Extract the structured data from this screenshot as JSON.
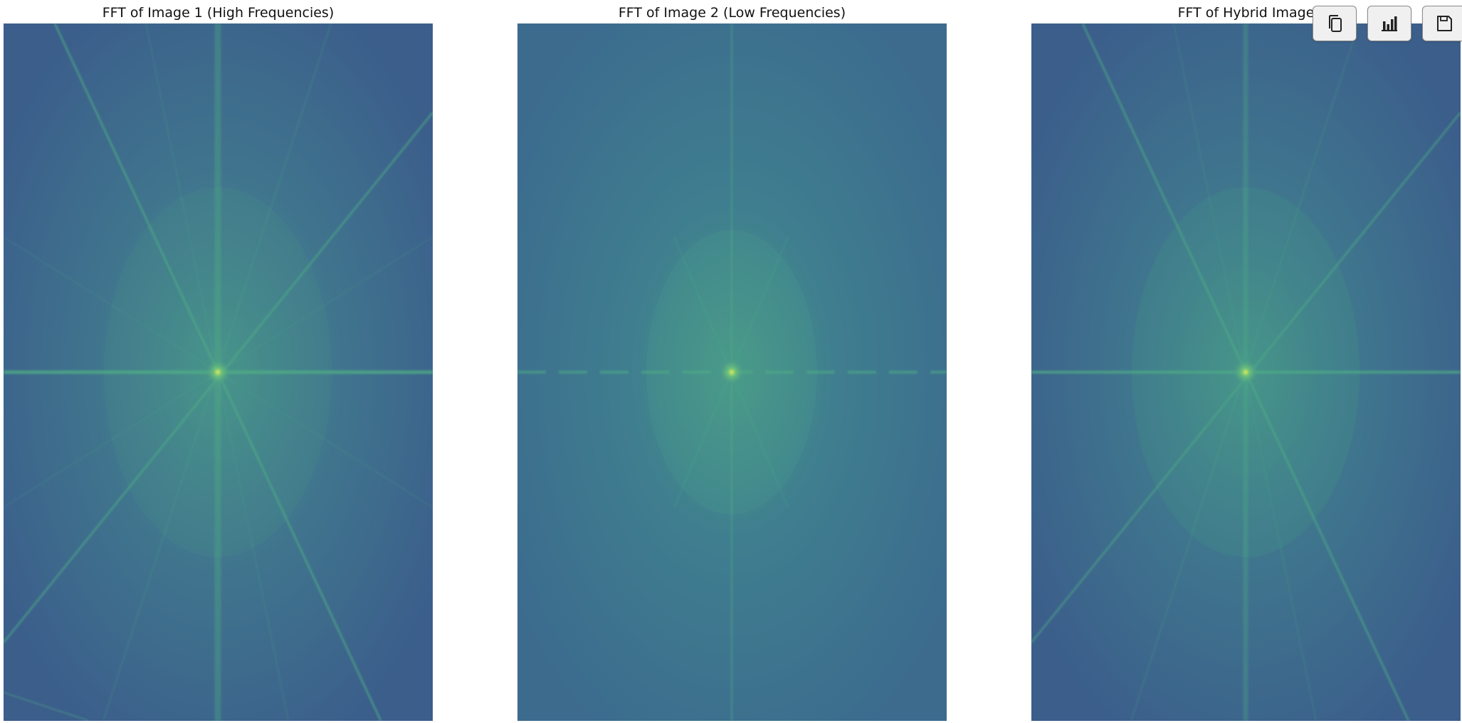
{
  "panels": [
    {
      "title": "FFT of Image 1 (High Frequencies)",
      "variant": "high"
    },
    {
      "title": "FFT of Image 2 (Low Frequencies)",
      "variant": "low"
    },
    {
      "title": "FFT of Hybrid Image",
      "variant": "hybrid"
    }
  ],
  "colors": {
    "background_dark": "#3b5f8c",
    "background_mid": "#3f7390",
    "streak": "#4fae85",
    "center": "#c8e06a"
  },
  "toolbar": {
    "buttons": [
      {
        "icon": "copy-icon"
      },
      {
        "icon": "bar-chart-icon"
      },
      {
        "icon": "save-icon"
      }
    ]
  }
}
